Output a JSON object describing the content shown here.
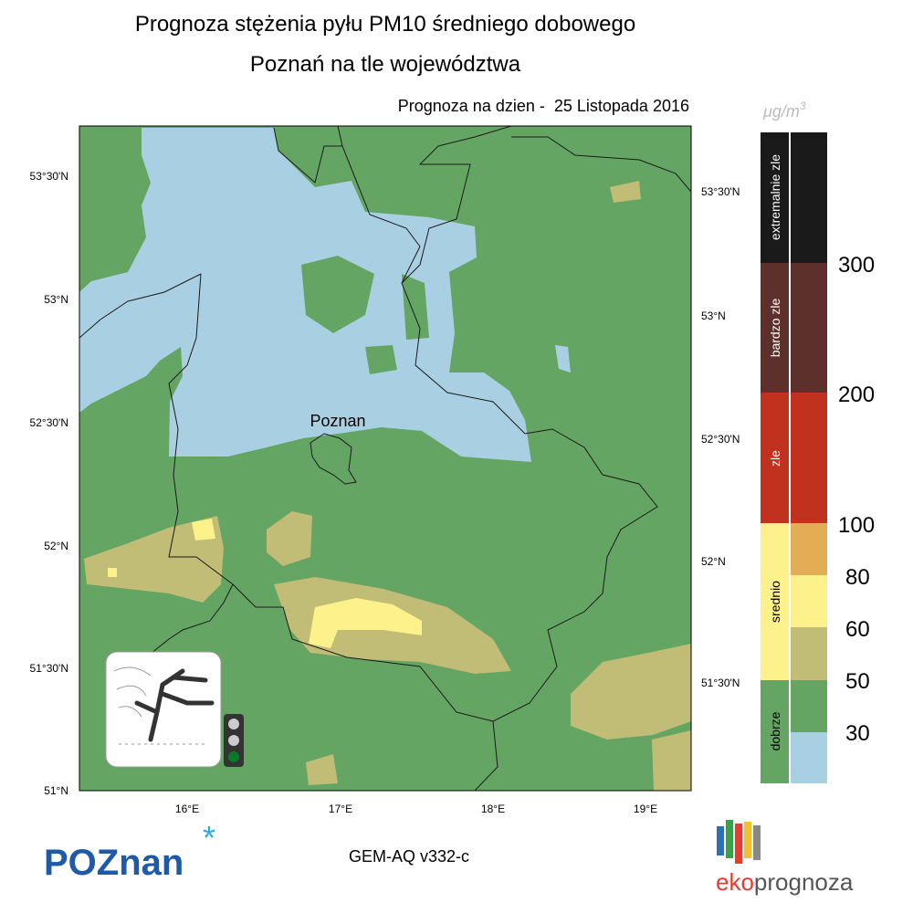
{
  "header": {
    "title_line1": "Prognoza stężenia pyłu PM10 średniego dobowego",
    "title_line2": "Poznań na tle województwa",
    "forecast_date": "Prognoza na dzien -  25 Listopada 2016"
  },
  "unit": {
    "base": "μg/m",
    "exponent": "3"
  },
  "map": {
    "place_label": "Poznan",
    "lat_labels_left": [
      "53°30'N",
      "53°N",
      "52°30'N",
      "52°N",
      "51°30'N",
      "51°N"
    ],
    "lat_labels_right": [
      "53°30'N",
      "53°N",
      "52°30'N",
      "52°N",
      "51°30'N"
    ],
    "lon_labels": [
      "16°E",
      "17°E",
      "18°E",
      "19°E"
    ]
  },
  "legend": {
    "categories": [
      "extremalnie zle",
      "bardzo zle",
      "zle",
      "srednio",
      "dobrze"
    ],
    "thresholds": [
      "300",
      "200",
      "100",
      "80",
      "60",
      "50",
      "30"
    ]
  },
  "footer": {
    "model": "GEM-AQ v332-c",
    "city_logo": "POZnan",
    "brand_prefix": "eko",
    "brand_suffix": "prognoza"
  }
}
